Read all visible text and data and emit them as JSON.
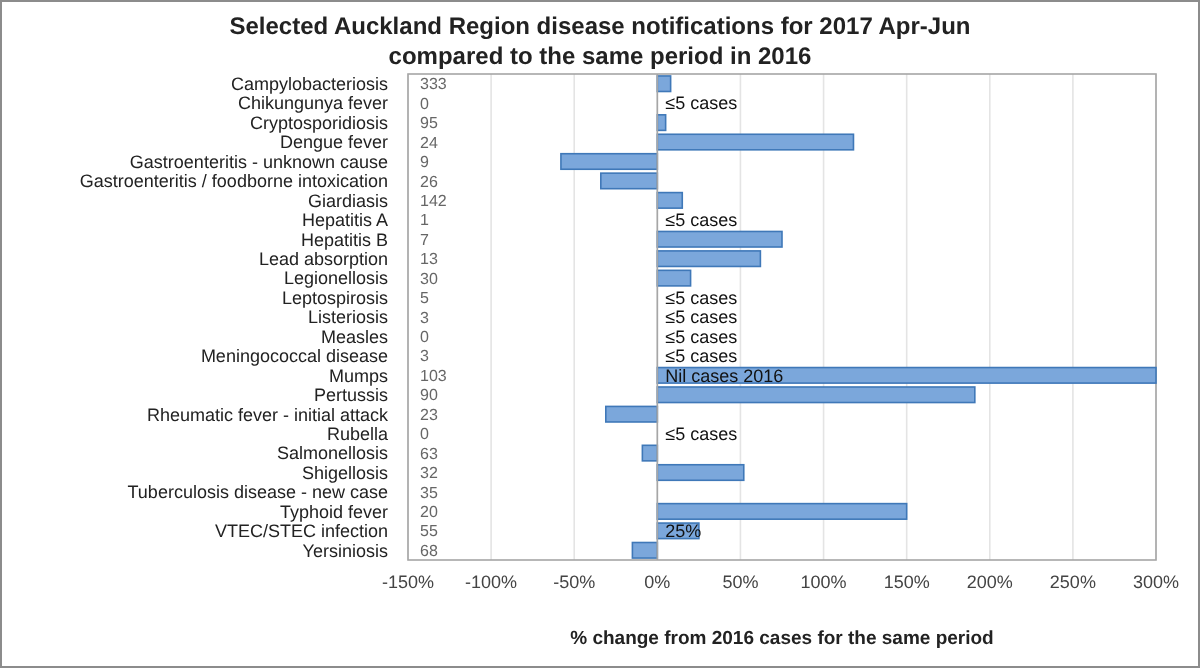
{
  "chart_data": {
    "type": "bar",
    "orientation": "horizontal",
    "title": "Selected Auckland Region disease notifications for 2017 Apr-Jun compared to the same period in 2016",
    "xlabel": "% change from 2016 cases for the same period",
    "categories": [
      "Campylobacteriosis",
      "Chikungunya fever",
      "Cryptosporidiosis",
      "Dengue fever",
      "Gastroenteritis - unknown cause",
      "Gastroenteritis / foodborne intoxication",
      "Giardiasis",
      "Hepatitis A",
      "Hepatitis B",
      "Lead absorption",
      "Legionellosis",
      "Leptospirosis",
      "Listeriosis",
      "Measles",
      "Meningococcal disease",
      "Mumps",
      "Pertussis",
      "Rheumatic fever - initial attack",
      "Rubella",
      "Salmonellosis",
      "Shigellosis",
      "Tuberculosis disease - new case",
      "Typhoid fever",
      "VTEC/STEC infection",
      "Yersiniosis"
    ],
    "values": [
      8,
      null,
      5,
      118,
      -58,
      -34,
      15,
      null,
      75,
      62,
      20,
      null,
      null,
      null,
      null,
      300,
      191,
      -31,
      null,
      -9,
      52,
      0,
      150,
      25,
      -15
    ],
    "value_labels": [
      null,
      "≤5 cases",
      null,
      null,
      null,
      null,
      null,
      "≤5 cases",
      null,
      null,
      null,
      "≤5 cases",
      "≤5 cases",
      "≤5 cases",
      "≤5 cases",
      "Nil cases 2016",
      null,
      null,
      "≤5 cases",
      null,
      null,
      null,
      null,
      "25%",
      null
    ],
    "color": "#7ba7db",
    "xlim": [
      -150,
      300
    ],
    "xticks": [
      {
        "value": -150,
        "label": "-150%"
      },
      {
        "value": -100,
        "label": "-100%"
      },
      {
        "value": -50,
        "label": "-50%"
      },
      {
        "value": 0,
        "label": "0%"
      },
      {
        "value": 50,
        "label": "50%"
      },
      {
        "value": 100,
        "label": "100%"
      },
      {
        "value": 150,
        "label": "150%"
      },
      {
        "value": 200,
        "label": "200%"
      },
      {
        "value": 250,
        "label": "250%"
      },
      {
        "value": 300,
        "label": "300%"
      }
    ],
    "grid": "x",
    "annotations": [
      "333",
      "0",
      "95",
      "24",
      "9",
      "26",
      "142",
      "1",
      "7",
      "13",
      "30",
      "5",
      "3",
      "0",
      "3",
      "103",
      "90",
      "23",
      "0",
      "63",
      "32",
      "35",
      "20",
      "55",
      "68"
    ]
  }
}
